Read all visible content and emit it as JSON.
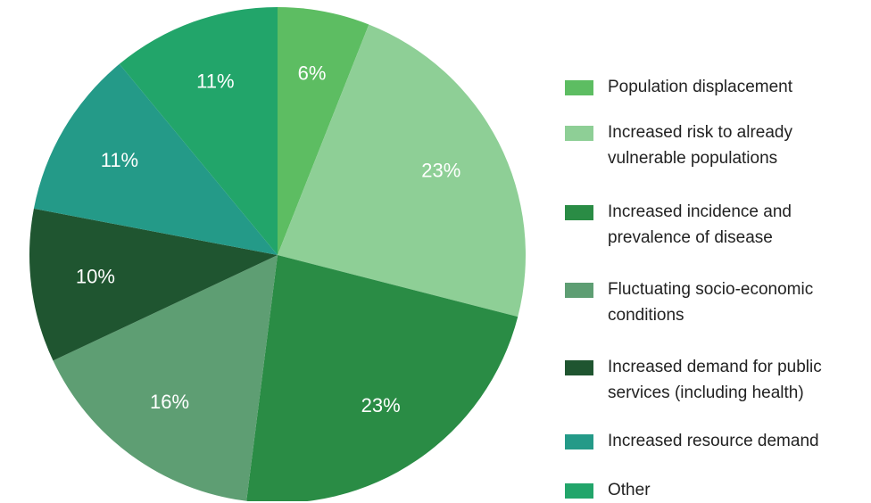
{
  "chart_data": {
    "type": "pie",
    "categories": [
      "Population displacement",
      "Increased risk to already vulnerable populations",
      "Increased incidence and prevalence of disease",
      "Fluctuating socio-economic conditions",
      "Increased demand for public services (including health)",
      "Increased resource demand",
      "Other"
    ],
    "values": [
      6,
      23,
      23,
      16,
      10,
      11,
      11
    ],
    "value_labels": [
      "6%",
      "23%",
      "23%",
      "16%",
      "10%",
      "11%",
      "11%"
    ],
    "colors": [
      "#5dbd62",
      "#8ecf96",
      "#2a8c45",
      "#5e9e73",
      "#1f5530",
      "#249a88",
      "#22a56a"
    ]
  }
}
